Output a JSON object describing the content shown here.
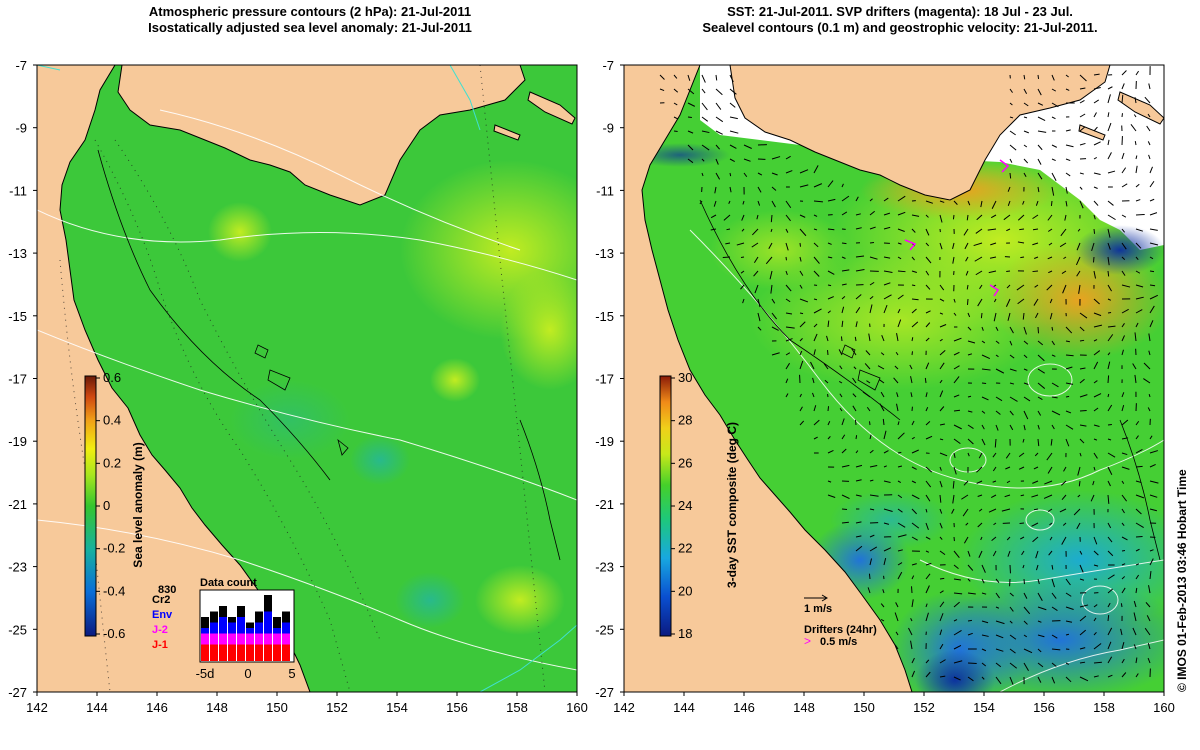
{
  "left_panel": {
    "title_line1": "Atmospheric pressure contours (2 hPa): 21-Jul-2011",
    "title_line2": "Isostatically adjusted sea level anomaly: 21-Jul-2011",
    "colorbar": {
      "label": "Sea level anomaly (m)",
      "ticks": [
        "0.6",
        "0.4",
        "0.2",
        "0",
        "-0.2",
        "-0.4",
        "-0.6"
      ]
    },
    "data_count": {
      "title": "Data count",
      "max_label": "830",
      "satellites": [
        {
          "name": "Cr2",
          "color": "#000000"
        },
        {
          "name": "Env",
          "color": "#0000ff"
        },
        {
          "name": "J-2",
          "color": "#ff00ff"
        },
        {
          "name": "J-1",
          "color": "#ff0000"
        }
      ],
      "x_ticks": [
        "-5d",
        "0",
        "5"
      ],
      "bars": [
        {
          "J-1": 3,
          "J-2": 2,
          "Env": 1,
          "Cr2": 2
        },
        {
          "J-1": 3,
          "J-2": 2,
          "Env": 2,
          "Cr2": 2
        },
        {
          "J-1": 3,
          "J-2": 2,
          "Env": 3,
          "Cr2": 2
        },
        {
          "J-1": 3,
          "J-2": 2,
          "Env": 2,
          "Cr2": 1
        },
        {
          "J-1": 3,
          "J-2": 2,
          "Env": 3,
          "Cr2": 2
        },
        {
          "J-1": 3,
          "J-2": 2,
          "Env": 1,
          "Cr2": 1
        },
        {
          "J-1": 3,
          "J-2": 2,
          "Env": 2,
          "Cr2": 2
        },
        {
          "J-1": 3,
          "J-2": 2,
          "Env": 4,
          "Cr2": 3
        },
        {
          "J-1": 3,
          "J-2": 2,
          "Env": 1,
          "Cr2": 2
        },
        {
          "J-1": 3,
          "J-2": 2,
          "Env": 2,
          "Cr2": 2
        }
      ]
    }
  },
  "right_panel": {
    "title_line1": "SST: 21-Jul-2011. SVP drifters (magenta): 18 Jul - 23 Jul.",
    "title_line2": "Sealevel contours (0.1 m) and geostrophic velocity: 21-Jul-2011.",
    "colorbar": {
      "label": "3-day SST composite (deg C)",
      "ticks": [
        "30",
        "28",
        "26",
        "24",
        "22",
        "20",
        "18"
      ]
    },
    "velocity_scale": "1 m/s",
    "drifters_label": "Drifters (24hr)",
    "drifter_scale": "0.5 m/s"
  },
  "axes": {
    "y_ticks": [
      "-7",
      "-9",
      "-11",
      "-13",
      "-15",
      "-17",
      "-19",
      "-21",
      "-23",
      "-25",
      "-27"
    ],
    "x_ticks": [
      "142",
      "144",
      "146",
      "148",
      "150",
      "152",
      "154",
      "156",
      "158",
      "160"
    ]
  },
  "credit": "© IMOS 01-Feb-2013 03:46 Hobart Time",
  "colors": {
    "land": "#f7c99a",
    "ocean_green": "#3fcf3f",
    "ocean_light": "#a6ec24",
    "warm_orange": "#f0a020",
    "cold_blue": "#1f6fe0",
    "deep_blue": "#0a2ca0",
    "contour_white": "#ffffff",
    "coast_black": "#000000",
    "drifter_magenta": "#ff00ff"
  }
}
